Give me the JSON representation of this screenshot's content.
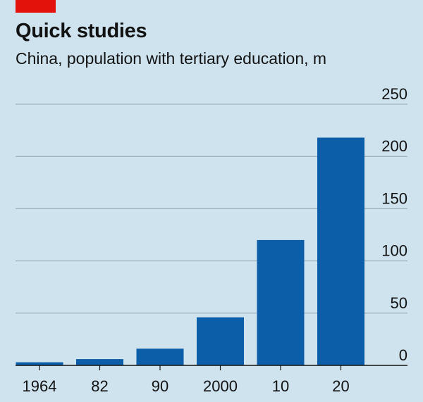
{
  "header": {
    "title": "Quick studies",
    "subtitle": "China, population with tertiary education, m"
  },
  "colors": {
    "background": "#cfe3ee",
    "accent": "#e3120b",
    "bar": "#0d5ea8",
    "grid": "#8ea8b5",
    "axis": "#121212"
  },
  "chart_data": {
    "type": "bar",
    "title": "Quick studies",
    "subtitle": "China, population with tertiary education, m",
    "categories": [
      "1964",
      "82",
      "90",
      "2000",
      "10",
      "20"
    ],
    "values": [
      3,
      6,
      16,
      46,
      120,
      218
    ],
    "ylim": [
      0,
      250
    ],
    "yticks": [
      0,
      50,
      100,
      150,
      200,
      250
    ],
    "ytick_labels": [
      "0",
      "50",
      "100",
      "150",
      "200",
      "250"
    ],
    "y_axis_side": "right",
    "grid": true
  }
}
